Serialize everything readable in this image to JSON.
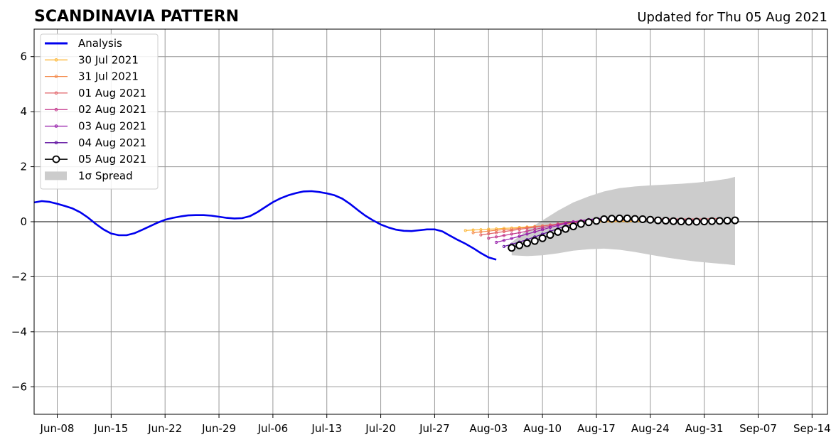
{
  "title": "SCANDINAVIA PATTERN",
  "subtitle": "Updated for Thu 05 Aug 2021",
  "chart_data": {
    "type": "line",
    "title": "SCANDINAVIA PATTERN",
    "subtitle": "Updated for Thu 05 Aug 2021",
    "xlabel": "",
    "ylabel": "",
    "x_axis": {
      "type": "date",
      "range": [
        "2021-06-05",
        "2021-09-16"
      ],
      "tick_dates": [
        "2021-06-08",
        "2021-06-15",
        "2021-06-22",
        "2021-06-29",
        "2021-07-06",
        "2021-07-13",
        "2021-07-20",
        "2021-07-27",
        "2021-08-03",
        "2021-08-10",
        "2021-08-17",
        "2021-08-24",
        "2021-08-31",
        "2021-09-07",
        "2021-09-14"
      ],
      "tick_labels": [
        "Jun-08",
        "Jun-15",
        "Jun-22",
        "Jun-29",
        "Jul-06",
        "Jul-13",
        "Jul-20",
        "Jul-27",
        "Aug-03",
        "Aug-10",
        "Aug-17",
        "Aug-24",
        "Aug-31",
        "Sep-07",
        "Sep-14"
      ]
    },
    "y_axis": {
      "range": [
        -7,
        7
      ],
      "ticks": [
        -6,
        -4,
        -2,
        0,
        2,
        4,
        6
      ],
      "tick_labels": [
        "−6",
        "−4",
        "−2",
        "0",
        "2",
        "4",
        "6"
      ]
    },
    "grid": true,
    "zero_line": true,
    "legend_position": "upper-left",
    "legend": [
      {
        "label": "Analysis",
        "color": "#0000ee",
        "style": "thick-line"
      },
      {
        "label": "30 Jul 2021",
        "color": "#fcb83a",
        "style": "thin-line-dots"
      },
      {
        "label": "31 Jul 2021",
        "color": "#f4894a",
        "style": "thin-line-dots"
      },
      {
        "label": "01 Aug 2021",
        "color": "#e2646a",
        "style": "thin-line-dots"
      },
      {
        "label": "02 Aug 2021",
        "color": "#c4398d",
        "style": "thin-line-dots"
      },
      {
        "label": "03 Aug 2021",
        "color": "#9419a8",
        "style": "thin-line-dots"
      },
      {
        "label": "04 Aug 2021",
        "color": "#5b0b9e",
        "style": "thin-line-dots"
      },
      {
        "label": "05 Aug 2021",
        "color": "#000000",
        "style": "line-open-circles"
      },
      {
        "label": "1σ Spread",
        "color": "#cccccc",
        "style": "patch"
      }
    ],
    "analysis": {
      "name": "Analysis",
      "color": "#0000ee",
      "x": [
        "2021-06-05",
        "2021-06-06",
        "2021-06-07",
        "2021-06-08",
        "2021-06-09",
        "2021-06-10",
        "2021-06-11",
        "2021-06-12",
        "2021-06-13",
        "2021-06-14",
        "2021-06-15",
        "2021-06-16",
        "2021-06-17",
        "2021-06-18",
        "2021-06-19",
        "2021-06-20",
        "2021-06-21",
        "2021-06-22",
        "2021-06-23",
        "2021-06-24",
        "2021-06-25",
        "2021-06-26",
        "2021-06-27",
        "2021-06-28",
        "2021-06-29",
        "2021-06-30",
        "2021-07-01",
        "2021-07-02",
        "2021-07-03",
        "2021-07-04",
        "2021-07-05",
        "2021-07-06",
        "2021-07-07",
        "2021-07-08",
        "2021-07-09",
        "2021-07-10",
        "2021-07-11",
        "2021-07-12",
        "2021-07-13",
        "2021-07-14",
        "2021-07-15",
        "2021-07-16",
        "2021-07-17",
        "2021-07-18",
        "2021-07-19",
        "2021-07-20",
        "2021-07-21",
        "2021-07-22",
        "2021-07-23",
        "2021-07-24",
        "2021-07-25",
        "2021-07-26",
        "2021-07-27",
        "2021-07-28",
        "2021-07-29",
        "2021-07-30",
        "2021-07-31",
        "2021-08-01",
        "2021-08-02",
        "2021-08-03",
        "2021-08-04"
      ],
      "y": [
        0.7,
        0.75,
        0.72,
        0.65,
        0.57,
        0.48,
        0.34,
        0.15,
        -0.08,
        -0.28,
        -0.43,
        -0.49,
        -0.49,
        -0.42,
        -0.3,
        -0.17,
        -0.04,
        0.07,
        0.14,
        0.19,
        0.23,
        0.24,
        0.24,
        0.22,
        0.18,
        0.14,
        0.12,
        0.13,
        0.2,
        0.35,
        0.53,
        0.71,
        0.85,
        0.96,
        1.04,
        1.1,
        1.11,
        1.08,
        1.03,
        0.96,
        0.84,
        0.65,
        0.43,
        0.22,
        0.05,
        -0.1,
        -0.21,
        -0.29,
        -0.33,
        -0.34,
        -0.31,
        -0.28,
        -0.28,
        -0.35,
        -0.51,
        -0.66,
        -0.8,
        -0.96,
        -1.14,
        -1.3,
        -1.38
      ]
    },
    "forecasts": [
      {
        "name": "30 Jul 2021",
        "color": "#fcb83a",
        "start": "2021-07-31",
        "y": [
          -0.32,
          -0.3,
          -0.29,
          -0.27,
          -0.26,
          -0.24,
          -0.23,
          -0.21,
          -0.19,
          -0.17,
          -0.15,
          -0.12,
          -0.1,
          -0.08,
          -0.06,
          -0.04,
          -0.02,
          -0.01,
          0.0,
          0.0,
          0.01,
          0.01,
          0.01,
          0.01
        ]
      },
      {
        "name": "31 Jul 2021",
        "color": "#f4894a",
        "start": "2021-08-01",
        "y": [
          -0.4,
          -0.37,
          -0.34,
          -0.31,
          -0.29,
          -0.27,
          -0.24,
          -0.21,
          -0.18,
          -0.15,
          -0.12,
          -0.09,
          -0.06,
          -0.03,
          -0.01,
          0.01,
          0.02,
          0.03,
          0.03,
          0.04,
          0.04,
          0.04,
          0.05,
          0.05
        ]
      },
      {
        "name": "01 Aug 2021",
        "color": "#e2646a",
        "start": "2021-08-02",
        "y": [
          -0.48,
          -0.44,
          -0.4,
          -0.36,
          -0.32,
          -0.28,
          -0.24,
          -0.2,
          -0.16,
          -0.12,
          -0.08,
          -0.04,
          -0.01,
          0.02,
          0.04,
          0.06,
          0.07,
          0.08,
          0.08,
          0.09,
          0.09,
          0.09,
          0.1,
          0.1,
          0.1,
          0.1,
          0.1,
          0.1,
          0.1,
          0.1,
          0.11,
          0.11
        ]
      },
      {
        "name": "02 Aug 2021",
        "color": "#c4398d",
        "start": "2021-08-03",
        "y": [
          -0.6,
          -0.55,
          -0.5,
          -0.45,
          -0.4,
          -0.34,
          -0.28,
          -0.22,
          -0.16,
          -0.1,
          -0.05,
          0.0,
          0.04,
          0.07,
          0.09,
          0.1,
          0.11,
          0.11,
          0.11,
          0.1,
          0.1,
          0.09,
          0.09,
          0.08,
          0.08,
          0.07,
          0.07,
          0.06,
          0.06
        ]
      },
      {
        "name": "03 Aug 2021",
        "color": "#9419a8",
        "start": "2021-08-04",
        "y": [
          -0.75,
          -0.68,
          -0.61,
          -0.53,
          -0.45,
          -0.37,
          -0.29,
          -0.21,
          -0.14,
          -0.07,
          -0.01,
          0.04,
          0.08,
          0.11,
          0.13,
          0.13,
          0.13,
          0.12,
          0.11,
          0.09,
          0.08,
          0.07,
          0.06,
          0.05,
          0.04,
          0.04,
          0.03,
          0.03
        ]
      },
      {
        "name": "04 Aug 2021",
        "color": "#5b0b9e",
        "start": "2021-08-05",
        "y": [
          -0.9,
          -0.82,
          -0.74,
          -0.65,
          -0.55,
          -0.45,
          -0.35,
          -0.25,
          -0.16,
          -0.08,
          -0.01,
          0.05,
          0.09,
          0.11,
          0.12,
          0.12,
          0.11,
          0.1,
          0.08,
          0.06,
          0.05,
          0.04,
          0.03,
          0.02,
          0.02,
          0.02,
          0.02
        ]
      }
    ],
    "current": {
      "name": "05 Aug 2021",
      "color": "#000000",
      "start": "2021-08-06",
      "y": [
        -0.95,
        -0.86,
        -0.78,
        -0.7,
        -0.6,
        -0.48,
        -0.37,
        -0.26,
        -0.17,
        -0.08,
        -0.02,
        0.03,
        0.09,
        0.11,
        0.12,
        0.12,
        0.1,
        0.09,
        0.07,
        0.05,
        0.04,
        0.02,
        0.01,
        0.0,
        0.0,
        0.01,
        0.02,
        0.03,
        0.04,
        0.05
      ]
    },
    "spread": {
      "label": "1σ Spread",
      "color": "#cccccc",
      "x": [
        "2021-08-06",
        "2021-08-08",
        "2021-08-10",
        "2021-08-12",
        "2021-08-14",
        "2021-08-16",
        "2021-08-18",
        "2021-08-20",
        "2021-08-22",
        "2021-08-24",
        "2021-08-26",
        "2021-08-28",
        "2021-08-30",
        "2021-09-01",
        "2021-09-03",
        "2021-09-04"
      ],
      "upper": [
        -0.75,
        -0.3,
        0.05,
        0.4,
        0.7,
        0.92,
        1.1,
        1.22,
        1.28,
        1.32,
        1.35,
        1.38,
        1.42,
        1.48,
        1.56,
        1.63
      ],
      "lower": [
        -1.22,
        -1.25,
        -1.22,
        -1.15,
        -1.05,
        -1.0,
        -0.98,
        -1.02,
        -1.1,
        -1.2,
        -1.3,
        -1.38,
        -1.45,
        -1.5,
        -1.55,
        -1.58
      ]
    }
  }
}
